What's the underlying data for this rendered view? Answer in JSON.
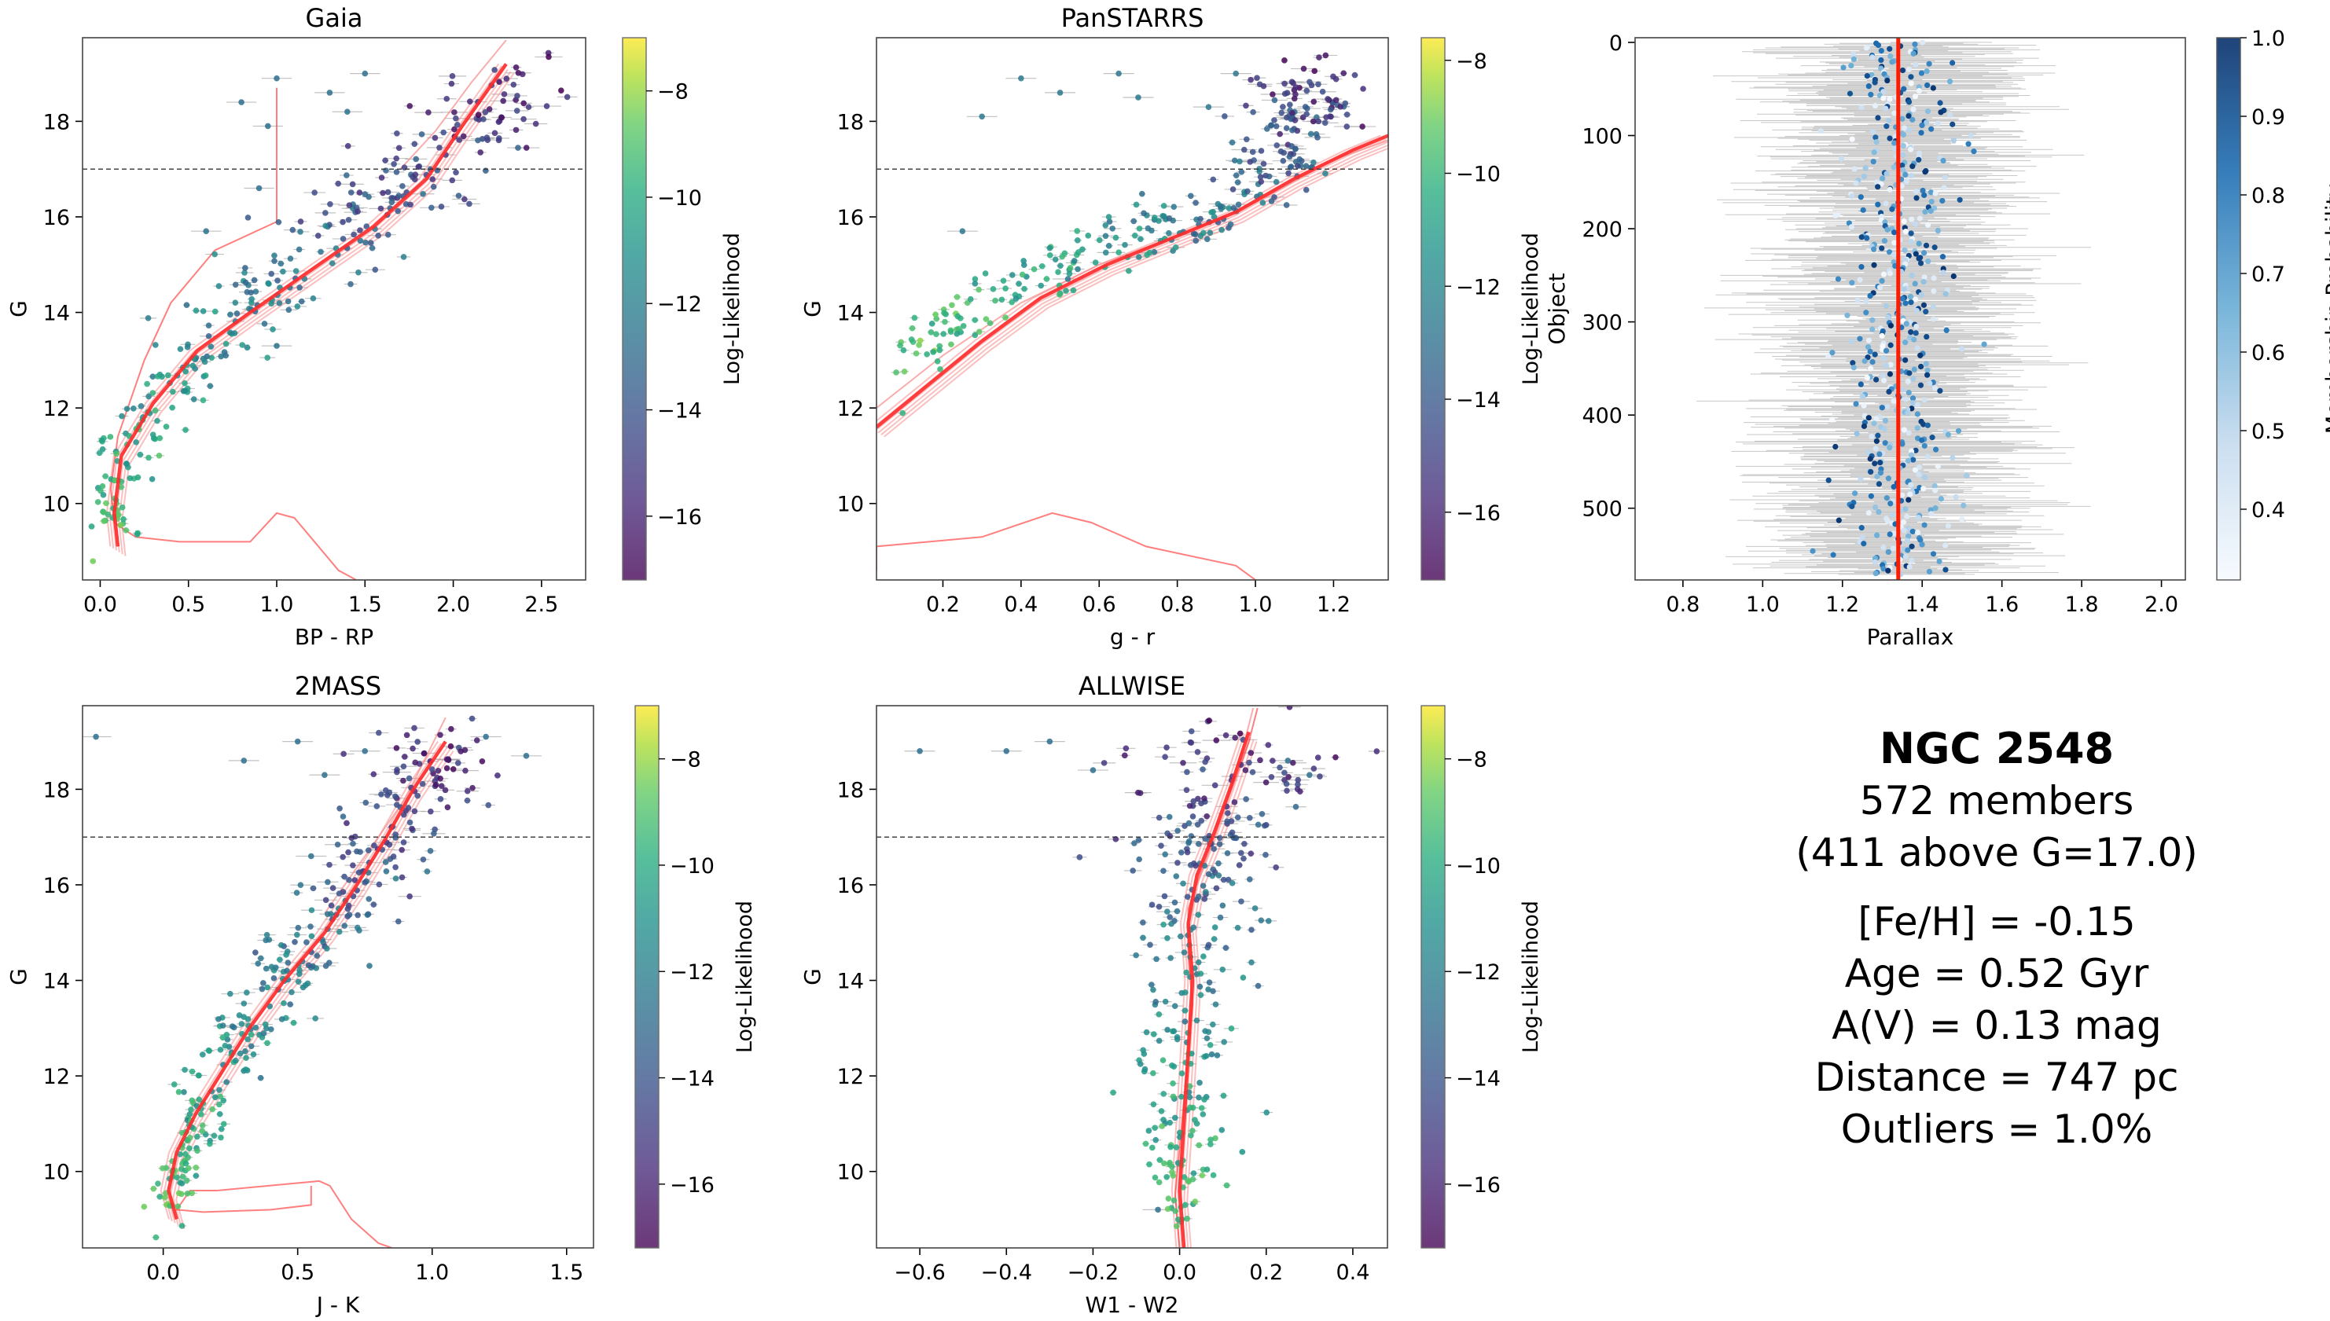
{
  "colorbar_label": "Log-Likelihood",
  "membership_label": "Membership Probability",
  "colors": {
    "isochrone": "#ff2a2a",
    "isochrone_faint": "#f88a8a",
    "errorbar": "#9a9a9a",
    "cutline": "#333333",
    "parallax_line": "#ff1a00",
    "frame": "#444444"
  },
  "chart_data": [
    {
      "id": "gaia",
      "type": "scatter",
      "title": "Gaia",
      "xlabel": "BP - RP",
      "ylabel": "G",
      "xlim": [
        -0.1,
        2.75
      ],
      "ylim": [
        19.75,
        8.4
      ],
      "xticks": [
        0.0,
        0.5,
        1.0,
        1.5,
        2.0,
        2.5
      ],
      "xtick_labels": [
        "0.0",
        "0.5",
        "1.0",
        "1.5",
        "2.0",
        "2.5"
      ],
      "yticks": [
        10,
        12,
        14,
        16,
        18
      ],
      "ytick_labels": [
        "10",
        "12",
        "14",
        "16",
        "18"
      ],
      "cut_g": 17.0,
      "isochrone": [
        [
          1.0,
          18.7
        ],
        [
          1.0,
          15.9
        ],
        [
          0.65,
          15.3
        ],
        [
          0.4,
          14.2
        ],
        [
          0.25,
          13.0
        ],
        [
          0.1,
          11.4
        ],
        [
          0.06,
          10.3
        ],
        [
          0.08,
          9.6
        ],
        [
          0.2,
          9.3
        ],
        [
          0.45,
          9.2
        ],
        [
          0.85,
          9.2
        ],
        [
          1.0,
          9.8
        ],
        [
          1.1,
          9.7
        ],
        [
          1.35,
          8.6
        ],
        [
          1.45,
          8.4
        ]
      ],
      "isochrone_main": [
        [
          0.1,
          9.1
        ],
        [
          0.08,
          9.8
        ],
        [
          0.12,
          11.0
        ],
        [
          0.3,
          12.1
        ],
        [
          0.55,
          13.2
        ],
        [
          0.85,
          14.0
        ],
        [
          1.2,
          14.9
        ],
        [
          1.55,
          15.8
        ],
        [
          1.85,
          16.8
        ],
        [
          2.05,
          17.9
        ],
        [
          2.3,
          19.2
        ]
      ],
      "isochrone_tail": [
        [
          1.7,
          17.0
        ],
        [
          1.9,
          17.8
        ],
        [
          2.1,
          18.8
        ],
        [
          2.3,
          19.7
        ]
      ],
      "scatter_ref": [
        [
          0.05,
          9.5
        ],
        [
          0.1,
          10.8
        ],
        [
          0.3,
          12.0
        ],
        [
          0.55,
          13.2
        ],
        [
          0.85,
          14.2
        ],
        [
          1.2,
          15.0
        ],
        [
          1.5,
          15.9
        ],
        [
          1.8,
          16.9
        ],
        [
          2.1,
          17.8
        ],
        [
          2.4,
          19.0
        ]
      ],
      "scatter_spread": [
        0.15,
        0.3
      ],
      "scatter_n": 340,
      "outliers": [
        [
          0.8,
          18.4
        ],
        [
          1.3,
          18.6
        ],
        [
          1.0,
          18.9
        ],
        [
          1.5,
          19.0
        ],
        [
          0.95,
          17.9
        ],
        [
          1.4,
          18.2
        ],
        [
          0.6,
          15.7
        ],
        [
          1.0,
          13.3
        ],
        [
          0.9,
          16.6
        ]
      ],
      "colorbar": {
        "min": -17.2,
        "max": -7.0,
        "ticks": [
          -16,
          -14,
          -12,
          -10,
          -8
        ],
        "tick_labels": [
          "−16",
          "−14",
          "−12",
          "−10",
          "−8"
        ]
      }
    },
    {
      "id": "panstarrs",
      "type": "scatter",
      "title": "PanSTARRS",
      "xlabel": "g - r",
      "ylabel": "G",
      "xlim": [
        0.03,
        1.34
      ],
      "ylim": [
        19.75,
        8.4
      ],
      "xticks": [
        0.2,
        0.4,
        0.6,
        0.8,
        1.0,
        1.2
      ],
      "xtick_labels": [
        "0.2",
        "0.4",
        "0.6",
        "0.8",
        "1.0",
        "1.2"
      ],
      "yticks": [
        10,
        12,
        14,
        16,
        18
      ],
      "ytick_labels": [
        "10",
        "12",
        "14",
        "16",
        "18"
      ],
      "cut_g": 17.0,
      "isochrone": [
        [
          0.03,
          8.6
        ],
        [
          0.03,
          9.1
        ],
        [
          0.3,
          9.3
        ],
        [
          0.48,
          9.8
        ],
        [
          0.58,
          9.6
        ],
        [
          0.72,
          9.1
        ],
        [
          0.95,
          8.7
        ],
        [
          1.0,
          8.4
        ],
        [
          0.97,
          8.3
        ]
      ],
      "isochrone_main": [
        [
          0.03,
          11.6
        ],
        [
          0.15,
          12.4
        ],
        [
          0.3,
          13.4
        ],
        [
          0.45,
          14.3
        ],
        [
          0.62,
          15.0
        ],
        [
          0.8,
          15.6
        ],
        [
          0.95,
          16.1
        ],
        [
          1.1,
          16.8
        ],
        [
          1.25,
          17.4
        ],
        [
          1.34,
          17.7
        ]
      ],
      "isochrone_tail": [
        [
          0.03,
          12.0
        ],
        [
          0.2,
          13.1
        ],
        [
          0.4,
          14.2
        ],
        [
          0.6,
          15.0
        ],
        [
          0.8,
          15.6
        ],
        [
          1.0,
          16.3
        ],
        [
          1.2,
          17.2
        ],
        [
          1.34,
          17.6
        ]
      ],
      "scatter_ref": [
        [
          0.1,
          12.9
        ],
        [
          0.25,
          13.9
        ],
        [
          0.45,
          14.8
        ],
        [
          0.65,
          15.4
        ],
        [
          0.85,
          16.0
        ],
        [
          1.0,
          16.6
        ],
        [
          1.08,
          17.5
        ],
        [
          1.12,
          18.3
        ],
        [
          1.15,
          19.0
        ]
      ],
      "scatter_spread": [
        0.05,
        0.3
      ],
      "scatter_n": 320,
      "outliers": [
        [
          0.3,
          18.1
        ],
        [
          0.4,
          18.9
        ],
        [
          0.5,
          18.6
        ],
        [
          0.7,
          18.5
        ],
        [
          0.65,
          19.0
        ],
        [
          0.88,
          18.3
        ],
        [
          0.95,
          19.0
        ],
        [
          0.25,
          15.7
        ],
        [
          0.52,
          14.7
        ]
      ],
      "colorbar": {
        "min": -17.2,
        "max": -7.6,
        "ticks": [
          -16,
          -14,
          -12,
          -10,
          -8
        ],
        "tick_labels": [
          "−16",
          "−14",
          "−12",
          "−10",
          "−8"
        ]
      }
    },
    {
      "id": "twomass",
      "type": "scatter",
      "title": "2MASS",
      "xlabel": "J - K",
      "ylabel": "G",
      "xlim": [
        -0.3,
        1.6
      ],
      "ylim": [
        19.75,
        8.4
      ],
      "xticks": [
        0.0,
        0.5,
        1.0,
        1.5
      ],
      "xtick_labels": [
        "0.0",
        "0.5",
        "1.0",
        "1.5"
      ],
      "yticks": [
        10,
        12,
        14,
        16,
        18
      ],
      "ytick_labels": [
        "10",
        "12",
        "14",
        "16",
        "18"
      ],
      "cut_g": 17.0,
      "isochrone": [
        [
          0.55,
          9.7
        ],
        [
          0.55,
          9.3
        ],
        [
          0.4,
          9.2
        ],
        [
          0.15,
          9.15
        ],
        [
          0.05,
          9.2
        ],
        [
          0.1,
          9.6
        ],
        [
          0.2,
          9.6
        ],
        [
          0.58,
          9.8
        ],
        [
          0.62,
          9.7
        ],
        [
          0.7,
          9.0
        ],
        [
          0.8,
          8.5
        ],
        [
          0.85,
          8.4
        ]
      ],
      "isochrone_main": [
        [
          0.05,
          9.0
        ],
        [
          0.02,
          9.6
        ],
        [
          0.05,
          10.4
        ],
        [
          0.12,
          11.2
        ],
        [
          0.22,
          12.1
        ],
        [
          0.32,
          13.0
        ],
        [
          0.45,
          14.0
        ],
        [
          0.6,
          15.0
        ],
        [
          0.72,
          16.0
        ],
        [
          0.83,
          17.0
        ],
        [
          0.93,
          18.0
        ],
        [
          1.05,
          19.0
        ]
      ],
      "isochrone_tail": [
        [
          0.6,
          15.4
        ],
        [
          0.75,
          16.6
        ],
        [
          0.9,
          17.8
        ],
        [
          1.05,
          19.5
        ]
      ],
      "scatter_ref": [
        [
          0.02,
          9.3
        ],
        [
          0.06,
          10.5
        ],
        [
          0.18,
          11.7
        ],
        [
          0.3,
          12.8
        ],
        [
          0.45,
          14.0
        ],
        [
          0.58,
          15.0
        ],
        [
          0.7,
          16.0
        ],
        [
          0.82,
          17.0
        ],
        [
          0.92,
          18.0
        ],
        [
          1.05,
          19.0
        ]
      ],
      "scatter_spread": [
        0.08,
        0.3
      ],
      "scatter_n": 360,
      "outliers": [
        [
          -0.25,
          19.1
        ],
        [
          0.3,
          18.6
        ],
        [
          0.55,
          16.6
        ],
        [
          0.75,
          18.8
        ],
        [
          1.35,
          18.7
        ],
        [
          1.2,
          19.1
        ],
        [
          0.5,
          19.0
        ],
        [
          0.6,
          18.3
        ]
      ],
      "colorbar": {
        "min": -17.2,
        "max": -7.0,
        "ticks": [
          -16,
          -14,
          -12,
          -10,
          -8
        ],
        "tick_labels": [
          "−16",
          "−14",
          "−12",
          "−10",
          "−8"
        ]
      }
    },
    {
      "id": "allwise",
      "type": "scatter",
      "title": "ALLWISE",
      "xlabel": "W1 - W2",
      "ylabel": "G",
      "xlim": [
        -0.7,
        0.48
      ],
      "ylim": [
        19.75,
        8.4
      ],
      "xticks": [
        -0.6,
        -0.4,
        -0.2,
        0.0,
        0.2,
        0.4
      ],
      "xtick_labels": [
        "−0.6",
        "−0.4",
        "−0.2",
        "0.0",
        "0.2",
        "0.4"
      ],
      "yticks": [
        10,
        12,
        14,
        16,
        18
      ],
      "ytick_labels": [
        "10",
        "12",
        "14",
        "16",
        "18"
      ],
      "cut_g": 17.0,
      "isochrone": [
        [
          0.0,
          8.4
        ],
        [
          -0.01,
          9.5
        ],
        [
          0.0,
          10.5
        ],
        [
          0.01,
          11.5
        ],
        [
          0.02,
          12.5
        ],
        [
          0.03,
          13.5
        ],
        [
          0.02,
          14.5
        ],
        [
          0.02,
          15.5
        ],
        [
          0.05,
          16.3
        ],
        [
          0.08,
          17.0
        ],
        [
          0.12,
          18.0
        ],
        [
          0.16,
          19.0
        ],
        [
          0.18,
          19.7
        ]
      ],
      "isochrone_main": [
        [
          0.01,
          8.4
        ],
        [
          0.0,
          9.6
        ],
        [
          0.01,
          11.0
        ],
        [
          0.02,
          12.5
        ],
        [
          0.03,
          14.0
        ],
        [
          0.02,
          15.2
        ],
        [
          0.04,
          16.2
        ],
        [
          0.08,
          17.1
        ],
        [
          0.12,
          18.1
        ],
        [
          0.16,
          19.2
        ]
      ],
      "isochrone_tail": [
        [
          0.04,
          16.0
        ],
        [
          0.1,
          17.5
        ],
        [
          0.15,
          19.0
        ],
        [
          0.17,
          19.7
        ]
      ],
      "scatter_ref": [
        [
          0.0,
          9.2
        ],
        [
          0.0,
          10.5
        ],
        [
          0.01,
          12.0
        ],
        [
          0.02,
          13.5
        ],
        [
          0.02,
          15.0
        ],
        [
          0.04,
          16.0
        ],
        [
          0.07,
          17.0
        ],
        [
          0.1,
          18.0
        ],
        [
          0.14,
          19.0
        ]
      ],
      "scatter_spread": [
        0.08,
        0.3
      ],
      "scatter_n": 340,
      "outliers": [
        [
          -0.6,
          18.8
        ],
        [
          -0.4,
          18.8
        ],
        [
          -0.2,
          18.4
        ],
        [
          0.3,
          18.3
        ],
        [
          -0.3,
          19.0
        ],
        [
          0.25,
          18.6
        ],
        [
          -0.05,
          9.2
        ]
      ],
      "colorbar": {
        "min": -17.2,
        "max": -7.0,
        "ticks": [
          -16,
          -14,
          -12,
          -10,
          -8
        ],
        "tick_labels": [
          "−16",
          "−14",
          "−12",
          "−10",
          "−8"
        ]
      }
    },
    {
      "id": "parallax",
      "type": "scatter",
      "title": "",
      "xlabel": "Parallax",
      "ylabel": "Object",
      "xlim": [
        0.68,
        2.06
      ],
      "ylim": [
        -5,
        577
      ],
      "xticks": [
        0.8,
        1.0,
        1.2,
        1.4,
        1.6,
        1.8,
        2.0
      ],
      "xtick_labels": [
        "0.8",
        "1.0",
        "1.2",
        "1.4",
        "1.6",
        "1.8",
        "2.0"
      ],
      "yticks": [
        0,
        100,
        200,
        300,
        400,
        500
      ],
      "ytick_labels": [
        "0",
        "100",
        "200",
        "300",
        "400",
        "500"
      ],
      "n_objects": 572,
      "mean_parallax": 1.34,
      "colorbar": {
        "min": 0.31,
        "max": 1.0,
        "ticks": [
          0.4,
          0.5,
          0.6,
          0.7,
          0.8,
          0.9,
          1.0
        ],
        "tick_labels": [
          "0.4",
          "0.5",
          "0.6",
          "0.7",
          "0.8",
          "0.9",
          "1.0"
        ]
      }
    }
  ],
  "summary": {
    "name": "NGC 2548",
    "members": "572 members",
    "above": "(411 above G=17.0)",
    "feh": "[Fe/H] = -0.15",
    "age": "Age = 0.52 Gyr",
    "av": "A(V) = 0.13 mag",
    "distance": "Distance = 747 pc",
    "outliers": "Outliers = 1.0%"
  }
}
